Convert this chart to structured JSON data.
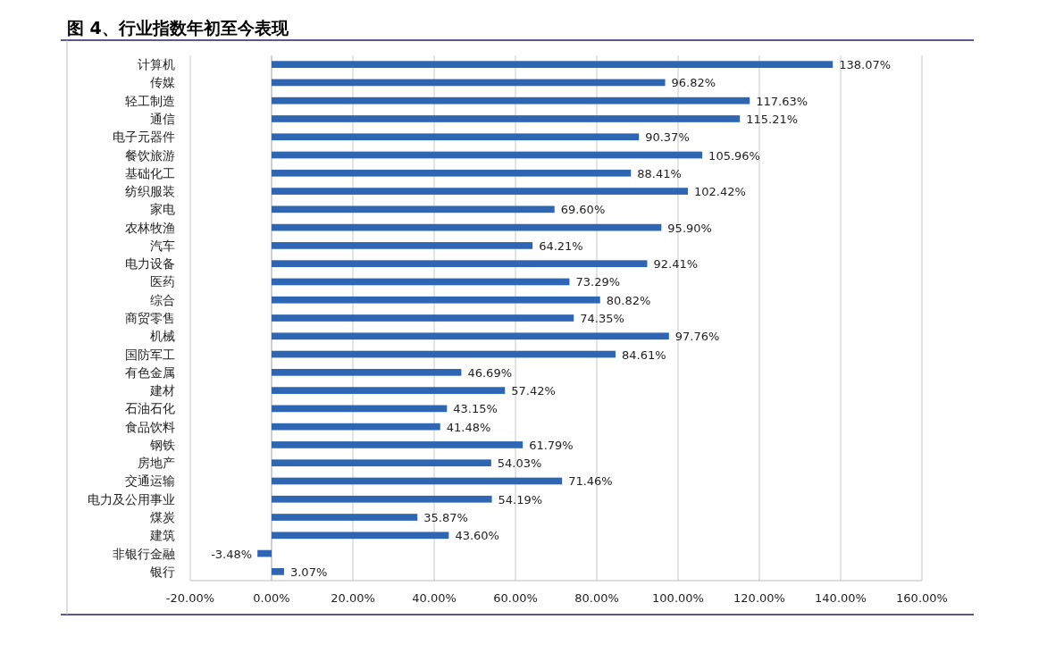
{
  "chart_data": {
    "type": "bar",
    "orientation": "horizontal",
    "title": "图 4、行业指数年初至今表现",
    "categories": [
      "计算机",
      "传媒",
      "轻工制造",
      "通信",
      "电子元器件",
      "餐饮旅游",
      "基础化工",
      "纺织服装",
      "家电",
      "农林牧渔",
      "汽车",
      "电力设备",
      "医药",
      "综合",
      "商贸零售",
      "机械",
      "国防军工",
      "有色金属",
      "建材",
      "石油石化",
      "食品饮料",
      "钢铁",
      "房地产",
      "交通运输",
      "电力及公用事业",
      "煤炭",
      "建筑",
      "非银行金融",
      "银行"
    ],
    "values": [
      138.07,
      96.82,
      117.63,
      115.21,
      90.37,
      105.96,
      88.41,
      102.42,
      69.6,
      95.9,
      64.21,
      92.41,
      73.29,
      80.82,
      74.35,
      97.76,
      84.61,
      46.69,
      57.42,
      43.15,
      41.48,
      61.79,
      54.03,
      71.46,
      54.19,
      35.87,
      43.6,
      -3.48,
      3.07
    ],
    "value_labels": [
      "138.07%",
      "96.82%",
      "117.63%",
      "115.21%",
      "90.37%",
      "105.96%",
      "88.41%",
      "102.42%",
      "69.60%",
      "95.90%",
      "64.21%",
      "92.41%",
      "73.29%",
      "80.82%",
      "74.35%",
      "97.76%",
      "84.61%",
      "46.69%",
      "57.42%",
      "43.15%",
      "41.48%",
      "61.79%",
      "54.03%",
      "71.46%",
      "54.19%",
      "35.87%",
      "43.60%",
      "-3.48%",
      "3.07%"
    ],
    "color": "#2f66b3",
    "xlim": [
      -20,
      160
    ],
    "xticks": [
      {
        "value": -20,
        "label": "-20.00%"
      },
      {
        "value": 0,
        "label": "0.00%"
      },
      {
        "value": 20,
        "label": "20.00%"
      },
      {
        "value": 40,
        "label": "40.00%"
      },
      {
        "value": 60,
        "label": "60.00%"
      },
      {
        "value": 80,
        "label": "80.00%"
      },
      {
        "value": 100,
        "label": "100.00%"
      },
      {
        "value": 120,
        "label": "120.00%"
      },
      {
        "value": 140,
        "label": "140.00%"
      },
      {
        "value": 160,
        "label": "160.00%"
      }
    ],
    "grid": "x"
  }
}
